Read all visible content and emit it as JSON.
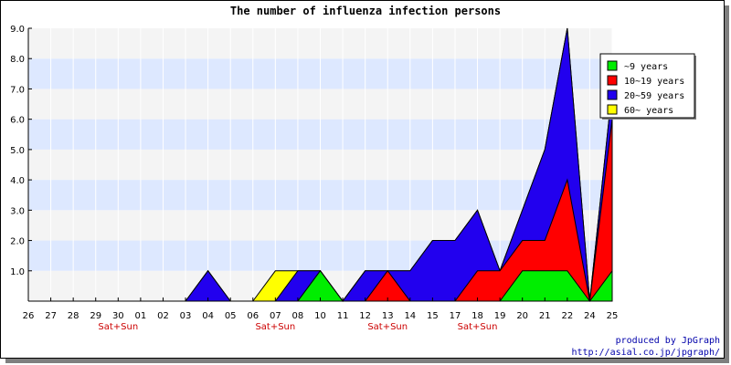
{
  "chart_data": {
    "type": "area",
    "title": "The number of influenza infection persons",
    "xlabel": "",
    "ylabel": "",
    "categories": [
      "26",
      "27",
      "28",
      "29",
      "30",
      "01",
      "02",
      "03",
      "04",
      "05",
      "06",
      "07",
      "08",
      "10",
      "11",
      "12",
      "13",
      "14",
      "15",
      "17",
      "18",
      "19",
      "20",
      "21",
      "22",
      "24",
      "25"
    ],
    "weekend_markers": [
      {
        "index": 4,
        "label": "Sat+Sun"
      },
      {
        "index": 11,
        "label": "Sat+Sun"
      },
      {
        "index": 16,
        "label": "Sat+Sun"
      },
      {
        "index": 20,
        "label": "Sat+Sun"
      }
    ],
    "ylim": [
      0,
      9
    ],
    "yticks": [
      "1.0",
      "2.0",
      "3.0",
      "4.0",
      "5.0",
      "6.0",
      "7.0",
      "8.0",
      "9.0"
    ],
    "stacked": true,
    "series": [
      {
        "name": "~9 years",
        "color": "#00ee00",
        "values": [
          0,
          0,
          0,
          0,
          0,
          0,
          0,
          0,
          0,
          0,
          0,
          0,
          0,
          1,
          0,
          0,
          0,
          0,
          0,
          0,
          0,
          0,
          1,
          1,
          1,
          0,
          1
        ]
      },
      {
        "name": "10~19 years",
        "color": "#ff0000",
        "values": [
          0,
          0,
          0,
          0,
          0,
          0,
          0,
          0,
          0,
          0,
          0,
          0,
          0,
          0,
          0,
          0,
          1,
          0,
          0,
          0,
          1,
          1,
          1,
          1,
          3,
          0,
          5
        ]
      },
      {
        "name": "20~59 years",
        "color": "#2200ee",
        "values": [
          0,
          0,
          0,
          0,
          0,
          0,
          0,
          0,
          1,
          0,
          0,
          0,
          1,
          0,
          0,
          1,
          0,
          1,
          2,
          2,
          2,
          0,
          1,
          3,
          5,
          0,
          1
        ]
      },
      {
        "name": "60~ years",
        "color": "#ffff00",
        "values": [
          0,
          0,
          0,
          0,
          0,
          0,
          0,
          0,
          0,
          0,
          0,
          1,
          0,
          0,
          0,
          0,
          0,
          0,
          0,
          0,
          0,
          0,
          0,
          0,
          0,
          0,
          0
        ]
      }
    ],
    "legend_position": "top-right",
    "grid": true,
    "band_colors": [
      "#dde8ff",
      "#f4f4f4"
    ]
  },
  "credits": {
    "line1": "produced by JpGraph",
    "line2": "http://asial.co.jp/jpgraph/"
  }
}
